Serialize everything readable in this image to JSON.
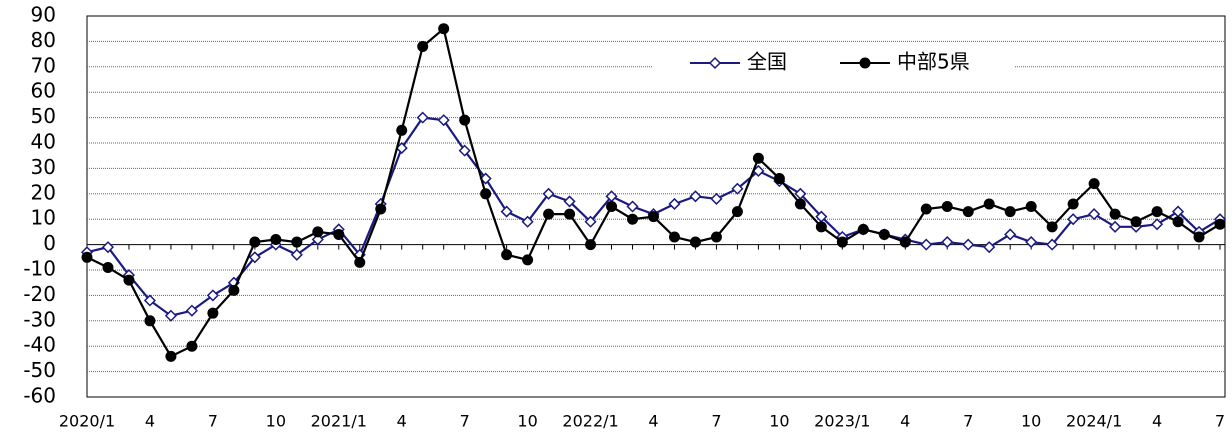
{
  "chart_data": {
    "type": "line",
    "categories": [
      "2020/1",
      null,
      null,
      "4",
      null,
      null,
      "7",
      null,
      null,
      "10",
      null,
      null,
      "2021/1",
      null,
      null,
      "4",
      null,
      null,
      "7",
      null,
      null,
      "10",
      null,
      null,
      "2022/1",
      null,
      null,
      "4",
      null,
      null,
      "7",
      null,
      null,
      "10",
      null,
      null,
      "2023/1",
      null,
      null,
      "4",
      null,
      null,
      "7",
      null,
      null,
      "10",
      null,
      null,
      "2024/1",
      null,
      null,
      "4",
      null,
      null,
      "7"
    ],
    "series": [
      {
        "name": "全国",
        "color": "#1a1a80",
        "marker": "diamond",
        "values": [
          -3,
          -1,
          -12,
          -22,
          -28,
          -26,
          -20,
          -15,
          -5,
          0,
          -4,
          2,
          6,
          -4,
          16,
          38,
          50,
          49,
          37,
          26,
          13,
          9,
          20,
          17,
          9,
          19,
          15,
          12,
          16,
          19,
          18,
          22,
          29,
          25,
          20,
          11,
          3,
          6,
          4,
          2,
          0,
          1,
          0,
          -1,
          4,
          1,
          0,
          10,
          12,
          7,
          7,
          8,
          13,
          5,
          10
        ]
      },
      {
        "name": "中部5県",
        "color": "#000000",
        "marker": "circle",
        "values": [
          -5,
          -9,
          -14,
          -30,
          -44,
          -40,
          -27,
          -18,
          1,
          2,
          1,
          5,
          4,
          -7,
          14,
          45,
          78,
          85,
          49,
          20,
          -4,
          -6,
          12,
          12,
          0,
          15,
          10,
          11,
          3,
          1,
          3,
          13,
          34,
          26,
          16,
          7,
          1,
          6,
          4,
          1,
          14,
          15,
          13,
          16,
          13,
          15,
          7,
          16,
          24,
          12,
          9,
          13,
          9,
          3,
          8
        ]
      }
    ],
    "ylim": [
      -60,
      90
    ],
    "yticks": [
      -60,
      -50,
      -40,
      -30,
      -20,
      -10,
      0,
      10,
      20,
      30,
      40,
      50,
      60,
      70,
      80,
      90
    ],
    "grid": true,
    "legend": "top-right"
  }
}
